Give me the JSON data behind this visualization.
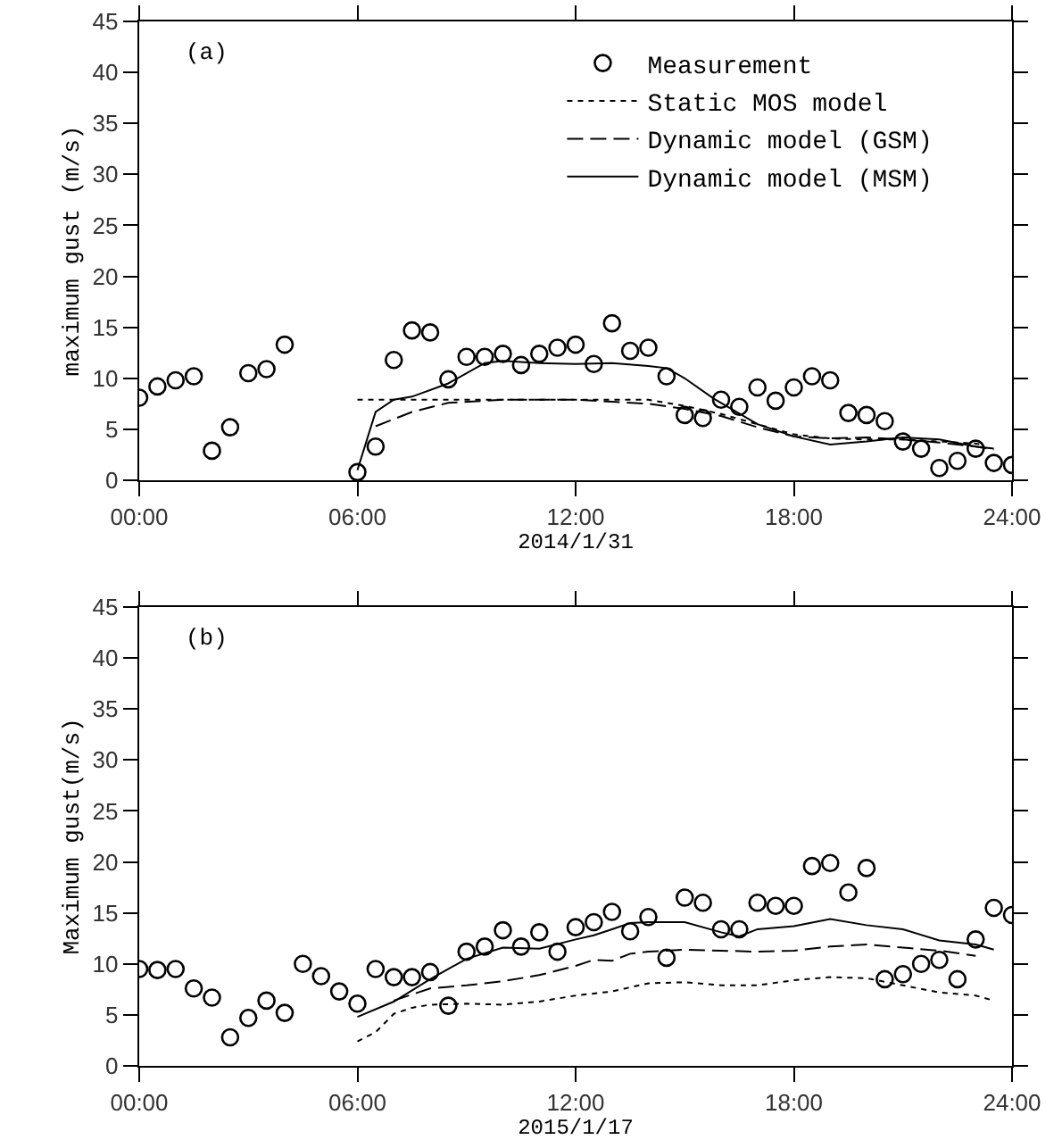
{
  "chart_data": [
    {
      "type": "scatter",
      "xlabel": "2014/1/31",
      "ylabel": "maximum gust (m/s)",
      "annotations": [
        "(a)"
      ],
      "legend": "top right",
      "grid": false,
      "xlim": [
        0,
        24
      ],
      "xticks": [
        {
          "value": 0,
          "label": "00:00"
        },
        {
          "value": 6,
          "label": "06:00"
        },
        {
          "value": 12,
          "label": "12:00"
        },
        {
          "value": 18,
          "label": "18:00"
        },
        {
          "value": 24,
          "label": "24:00"
        }
      ],
      "ylim": [
        0,
        45
      ],
      "yticks": [
        0,
        5,
        10,
        15,
        20,
        25,
        30,
        35,
        40,
        45
      ],
      "series": [
        {
          "name": "Measurement",
          "marker": "circle",
          "color": "#000000",
          "x": [
            0,
            0.5,
            1,
            1.5,
            2,
            2.5,
            3,
            3.5,
            4,
            6,
            6.5,
            7,
            7.5,
            8,
            8.5,
            9,
            9.5,
            10,
            10.5,
            11,
            11.5,
            12,
            12.5,
            13,
            13.5,
            14,
            14.5,
            15,
            15.5,
            16,
            16.5,
            17,
            17.5,
            18,
            18.5,
            19,
            19.5,
            20,
            20.5,
            21,
            21.5,
            22,
            22.5,
            23,
            23.5,
            24
          ],
          "values": [
            8.1,
            9.2,
            9.8,
            10.2,
            2.9,
            5.2,
            10.5,
            10.9,
            13.3,
            0.8,
            3.3,
            11.8,
            14.7,
            14.5,
            9.9,
            12.1,
            12.1,
            12.4,
            11.3,
            12.4,
            13.0,
            13.3,
            11.4,
            15.4,
            12.7,
            13.0,
            10.2,
            6.4,
            6.1,
            7.9,
            7.2,
            9.1,
            7.8,
            9.1,
            10.2,
            9.8,
            6.6,
            6.4,
            5.8,
            3.8,
            3.1,
            1.2,
            1.9,
            3.1,
            1.7,
            1.5
          ]
        },
        {
          "name": "Static MOS model",
          "type": "line",
          "line_style": "dotted",
          "color": "#000000",
          "x": [
            6,
            8,
            10,
            12,
            14,
            15,
            16,
            17,
            18,
            19,
            20,
            21,
            22,
            23,
            23.2
          ],
          "values": [
            7.9,
            7.9,
            7.9,
            7.9,
            7.9,
            7.3,
            6.5,
            5.5,
            4.5,
            4.1,
            4.0,
            4.0,
            3.8,
            3.6,
            3.5
          ]
        },
        {
          "name": "Dynamic model (GSM)",
          "type": "line",
          "line_style": "dashed",
          "color": "#000000",
          "x": [
            6.5,
            7.5,
            8.5,
            10,
            12,
            14,
            15,
            16,
            17,
            18,
            19,
            20,
            21,
            22,
            23,
            23.5
          ],
          "values": [
            5.3,
            6.7,
            7.6,
            7.9,
            7.9,
            7.5,
            7.0,
            6.3,
            5.2,
            4.3,
            4.1,
            4.2,
            4.0,
            3.7,
            3.3,
            3.0
          ]
        },
        {
          "name": "Dynamic model (MSM)",
          "type": "line",
          "line_style": "solid",
          "color": "#000000",
          "x": [
            6,
            6.5,
            7,
            7.5,
            8.5,
            9.5,
            10,
            11,
            12,
            13,
            14,
            14.5,
            15,
            15.8,
            17,
            18,
            19,
            20,
            21,
            22,
            23,
            23.5
          ],
          "values": [
            1.0,
            6.7,
            7.9,
            8.2,
            9.5,
            11.5,
            11.7,
            11.5,
            11.4,
            11.5,
            11.2,
            11.0,
            10.0,
            8.0,
            5.5,
            4.3,
            3.5,
            3.8,
            4.2,
            4.0,
            3.3,
            3.1
          ]
        }
      ]
    },
    {
      "type": "scatter",
      "xlabel": "2015/1/17",
      "ylabel": "Maximum gust(m/s)",
      "annotations": [
        "(b)"
      ],
      "legend": false,
      "grid": false,
      "xlim": [
        0,
        24
      ],
      "xticks": [
        {
          "value": 0,
          "label": "00:00"
        },
        {
          "value": 6,
          "label": "06:00"
        },
        {
          "value": 12,
          "label": "12:00"
        },
        {
          "value": 18,
          "label": "18:00"
        },
        {
          "value": 24,
          "label": "24:00"
        }
      ],
      "ylim": [
        0,
        45
      ],
      "yticks": [
        0,
        5,
        10,
        15,
        20,
        25,
        30,
        35,
        40,
        45
      ],
      "series": [
        {
          "marker": "circle",
          "color": "#000000",
          "x": [
            0,
            0.5,
            1,
            1.5,
            2,
            2.5,
            3,
            3.5,
            4,
            4.5,
            5,
            5.5,
            6,
            6.5,
            7,
            7.5,
            8,
            8.5,
            9,
            9.5,
            10,
            10.5,
            11,
            11.5,
            12,
            12.5,
            13,
            13.5,
            14,
            14.5,
            15,
            15.5,
            16,
            16.5,
            17,
            17.5,
            18,
            18.5,
            19,
            19.5,
            20,
            20.5,
            21,
            21.5,
            22,
            22.5,
            23,
            23.5,
            24
          ],
          "values": [
            9.5,
            9.4,
            9.5,
            7.6,
            6.7,
            2.8,
            4.7,
            6.4,
            5.2,
            10.0,
            8.8,
            7.3,
            6.1,
            9.5,
            8.7,
            8.7,
            9.2,
            5.9,
            11.2,
            11.7,
            13.3,
            11.7,
            13.1,
            11.2,
            13.6,
            14.1,
            15.1,
            13.2,
            14.6,
            10.6,
            16.5,
            16.0,
            13.4,
            13.4,
            16.0,
            15.7,
            15.7,
            19.6,
            19.9,
            17.0,
            19.4,
            8.5,
            9.0,
            10.0,
            10.4,
            8.5,
            12.4,
            15.5,
            14.8
          ]
        },
        {
          "type": "line",
          "line_style": "dotted",
          "color": "#000000",
          "x": [
            6,
            6.5,
            7,
            7.5,
            8,
            9,
            10,
            11,
            12,
            13,
            14,
            15,
            16,
            17,
            18,
            19,
            20,
            21,
            22,
            23,
            23.5
          ],
          "values": [
            2.4,
            3.3,
            5.1,
            5.7,
            6.0,
            6.1,
            6.0,
            6.3,
            6.9,
            7.3,
            8.1,
            8.2,
            7.9,
            7.9,
            8.4,
            8.7,
            8.6,
            7.9,
            7.2,
            6.9,
            6.4
          ]
        },
        {
          "type": "line",
          "line_style": "dashed",
          "color": "#000000",
          "x": [
            7,
            8,
            9,
            10,
            11,
            12,
            12.5,
            13,
            13.5,
            14,
            15,
            16,
            17,
            18,
            19,
            20,
            21,
            22,
            23
          ],
          "values": [
            6.4,
            7.6,
            7.9,
            8.3,
            8.9,
            9.8,
            10.4,
            10.3,
            11.0,
            11.2,
            11.4,
            11.3,
            11.2,
            11.3,
            11.7,
            11.9,
            11.6,
            11.3,
            10.8
          ]
        },
        {
          "type": "line",
          "line_style": "solid",
          "color": "#000000",
          "x": [
            6,
            7,
            8,
            9,
            10,
            11,
            12,
            12.5,
            13,
            13.5,
            14,
            15,
            16,
            16.5,
            17,
            18,
            19,
            20,
            21,
            22,
            23,
            23.5
          ],
          "values": [
            4.8,
            6.3,
            8.5,
            10.5,
            11.6,
            11.5,
            12.4,
            12.8,
            13.4,
            14.0,
            14.1,
            14.1,
            13.1,
            12.7,
            13.4,
            13.7,
            14.4,
            13.8,
            13.4,
            12.3,
            11.9,
            11.4
          ]
        }
      ]
    }
  ]
}
